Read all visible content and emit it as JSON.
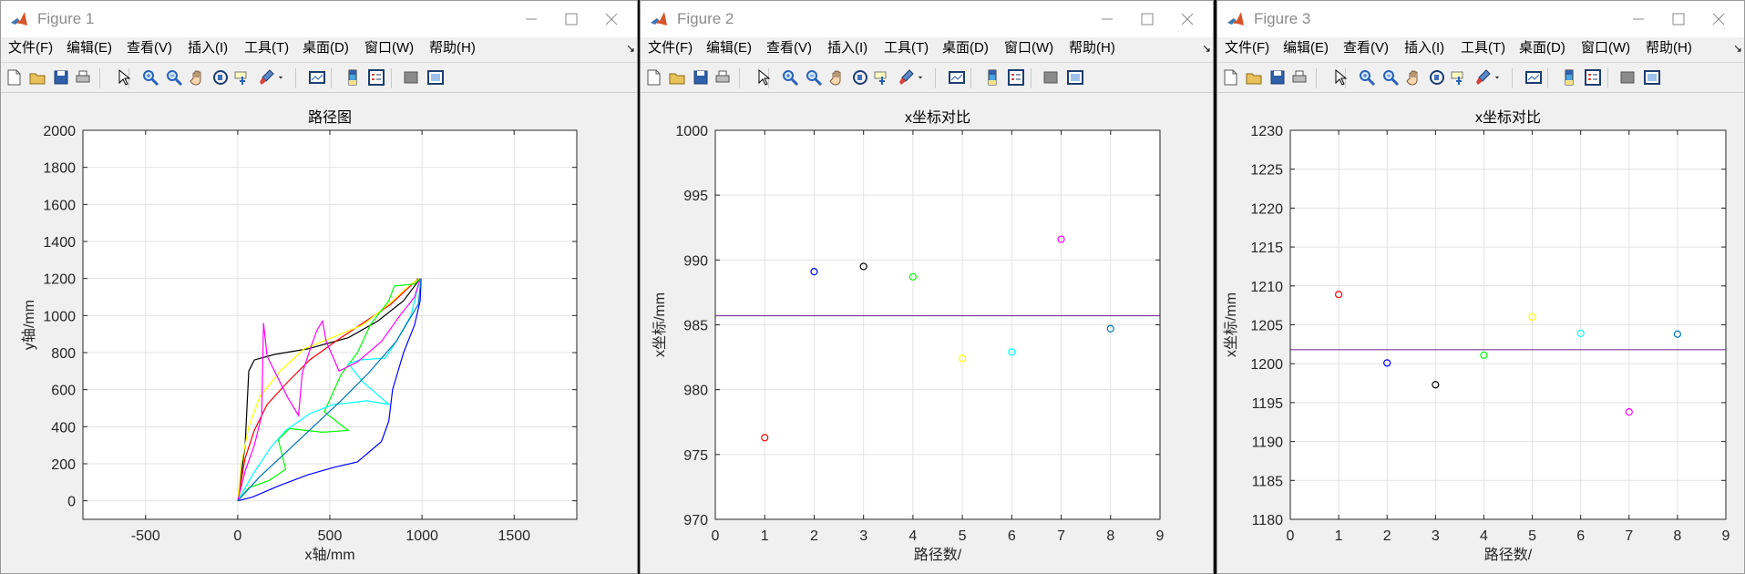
{
  "menu": [
    "文件(F)",
    "编辑(E)",
    "查看(V)",
    "插入(I)",
    "工具(T)",
    "桌面(D)",
    "窗口(W)",
    "帮助(H)"
  ],
  "menu_overflow": "↘",
  "toolbar_icons": [
    "new-figure-icon",
    "open-file-icon",
    "save-icon",
    "print-icon",
    "edit-plot-arrow-icon",
    "zoom-in-icon",
    "zoom-out-icon",
    "pan-hand-icon",
    "rotate-3d-icon",
    "data-cursor-icon",
    "brush-icon",
    "brush-dropdown-icon",
    "link-plot-icon",
    "insert-colorbar-icon",
    "insert-legend-icon",
    "hide-plot-tools-icon",
    "show-plot-tools-icon"
  ],
  "colors": {
    "title_bar": "#ffffff",
    "window_bg": "#f0f0f0",
    "axes_bg": "#ffffff",
    "grid": "#e3e3e3",
    "mean_line": "#7e3d9a"
  },
  "windows": [
    {
      "title": "Figure 1",
      "chart_data": {
        "type": "line",
        "title": "路径图",
        "xlabel": "x轴/mm",
        "ylabel": "y轴/mm",
        "xlim": [
          -840,
          1840
        ],
        "ylim": [
          -100,
          2000
        ],
        "xticks": [
          -500,
          0,
          500,
          1000,
          1500
        ],
        "yticks": [
          0,
          200,
          400,
          600,
          800,
          1000,
          1200,
          1400,
          1600,
          1800,
          2000
        ],
        "grid": true,
        "series": [
          {
            "color": "#0000ff",
            "points": [
              [
                0,
                0
              ],
              [
                80,
                20
              ],
              [
                220,
                80
              ],
              [
                380,
                140
              ],
              [
                520,
                180
              ],
              [
                650,
                210
              ],
              [
                780,
                320
              ],
              [
                820,
                430
              ],
              [
                840,
                600
              ],
              [
                900,
                800
              ],
              [
                960,
                950
              ],
              [
                990,
                1080
              ],
              [
                995,
                1200
              ]
            ]
          },
          {
            "color": "#000000",
            "points": [
              [
                0,
                0
              ],
              [
                20,
                150
              ],
              [
                40,
                300
              ],
              [
                50,
                500
              ],
              [
                60,
                700
              ],
              [
                90,
                760
              ],
              [
                200,
                790
              ],
              [
                380,
                820
              ],
              [
                600,
                880
              ],
              [
                760,
                970
              ],
              [
                900,
                1080
              ],
              [
                990,
                1200
              ]
            ]
          },
          {
            "color": "#ff0000",
            "points": [
              [
                0,
                0
              ],
              [
                40,
                230
              ],
              [
                90,
                380
              ],
              [
                160,
                520
              ],
              [
                270,
                640
              ],
              [
                390,
                760
              ],
              [
                530,
                860
              ],
              [
                680,
                960
              ],
              [
                830,
                1060
              ],
              [
                980,
                1200
              ]
            ]
          },
          {
            "color": "#ffff00",
            "points": [
              [
                0,
                0
              ],
              [
                20,
                200
              ],
              [
                60,
                400
              ],
              [
                120,
                560
              ],
              [
                230,
                700
              ],
              [
                360,
                820
              ],
              [
                510,
                880
              ],
              [
                680,
                950
              ],
              [
                830,
                1070
              ],
              [
                940,
                1170
              ],
              [
                990,
                1200
              ]
            ]
          },
          {
            "color": "#00ff00",
            "points": [
              [
                0,
                0
              ],
              [
                60,
                70
              ],
              [
                170,
                110
              ],
              [
                260,
                170
              ],
              [
                220,
                330
              ],
              [
                280,
                390
              ],
              [
                460,
                370
              ],
              [
                600,
                380
              ],
              [
                470,
                480
              ],
              [
                560,
                680
              ],
              [
                650,
                800
              ],
              [
                720,
                950
              ],
              [
                820,
                1080
              ],
              [
                850,
                1160
              ],
              [
                960,
                1170
              ],
              [
                990,
                1200
              ]
            ]
          },
          {
            "color": "#00ffff",
            "points": [
              [
                0,
                0
              ],
              [
                80,
                140
              ],
              [
                180,
                290
              ],
              [
                260,
                380
              ],
              [
                390,
                470
              ],
              [
                520,
                520
              ],
              [
                620,
                530
              ],
              [
                700,
                540
              ],
              [
                820,
                520
              ],
              [
                680,
                640
              ],
              [
                600,
                740
              ],
              [
                660,
                760
              ],
              [
                800,
                770
              ],
              [
                860,
                860
              ],
              [
                940,
                1000
              ],
              [
                990,
                1200
              ]
            ]
          },
          {
            "color": "#ff00ff",
            "points": [
              [
                0,
                0
              ],
              [
                40,
                160
              ],
              [
                90,
                300
              ],
              [
                130,
                460
              ],
              [
                140,
                960
              ],
              [
                160,
                780
              ],
              [
                270,
                560
              ],
              [
                330,
                460
              ],
              [
                350,
                690
              ],
              [
                400,
                840
              ],
              [
                430,
                920
              ],
              [
                460,
                970
              ],
              [
                480,
                860
              ],
              [
                550,
                700
              ],
              [
                650,
                750
              ],
              [
                780,
                860
              ],
              [
                880,
                1000
              ],
              [
                960,
                1100
              ],
              [
                990,
                1200
              ]
            ]
          },
          {
            "color": "#0072bd",
            "points": [
              [
                0,
                0
              ],
              [
                120,
                130
              ],
              [
                260,
                260
              ],
              [
                410,
                400
              ],
              [
                560,
                540
              ],
              [
                710,
                690
              ],
              [
                860,
                860
              ],
              [
                980,
                1060
              ],
              [
                995,
                1200
              ]
            ]
          }
        ]
      }
    },
    {
      "title": "Figure 2",
      "chart_data": {
        "type": "scatter",
        "title": "x坐标对比",
        "xlabel": "路径数/",
        "ylabel": "x坐标/mm",
        "xlim": [
          0,
          9
        ],
        "ylim": [
          970,
          1000
        ],
        "xticks": [
          0,
          1,
          2,
          3,
          4,
          5,
          6,
          7,
          8,
          9
        ],
        "yticks": [
          970,
          975,
          980,
          985,
          990,
          995,
          1000
        ],
        "grid": true,
        "mean_line": 985.7,
        "points": [
          {
            "x": 1,
            "y": 976.3,
            "color": "#ff0000"
          },
          {
            "x": 2,
            "y": 989.1,
            "color": "#0000ff"
          },
          {
            "x": 3,
            "y": 989.5,
            "color": "#000000"
          },
          {
            "x": 4,
            "y": 988.7,
            "color": "#00ff00"
          },
          {
            "x": 5,
            "y": 982.4,
            "color": "#ffff00"
          },
          {
            "x": 6,
            "y": 982.9,
            "color": "#00ffff"
          },
          {
            "x": 7,
            "y": 991.6,
            "color": "#ff00ff"
          },
          {
            "x": 8,
            "y": 984.7,
            "color": "#0072bd"
          }
        ]
      }
    },
    {
      "title": "Figure 3",
      "chart_data": {
        "type": "scatter",
        "title": "x坐标对比",
        "xlabel": "路径数/",
        "ylabel": "x坐标/mm",
        "xlim": [
          0,
          9
        ],
        "ylim": [
          1180,
          1230
        ],
        "xticks": [
          0,
          1,
          2,
          3,
          4,
          5,
          6,
          7,
          8,
          9
        ],
        "yticks": [
          1180,
          1185,
          1190,
          1195,
          1200,
          1205,
          1210,
          1215,
          1220,
          1225,
          1230
        ],
        "grid": true,
        "mean_line": 1201.8,
        "points": [
          {
            "x": 1,
            "y": 1208.9,
            "color": "#ff0000"
          },
          {
            "x": 2,
            "y": 1200.1,
            "color": "#0000ff"
          },
          {
            "x": 3,
            "y": 1197.3,
            "color": "#000000"
          },
          {
            "x": 4,
            "y": 1201.1,
            "color": "#00ff00"
          },
          {
            "x": 5,
            "y": 1206.0,
            "color": "#ffff00"
          },
          {
            "x": 6,
            "y": 1203.9,
            "color": "#00ffff"
          },
          {
            "x": 7,
            "y": 1193.8,
            "color": "#ff00ff"
          },
          {
            "x": 8,
            "y": 1203.8,
            "color": "#0072bd"
          }
        ]
      }
    }
  ]
}
